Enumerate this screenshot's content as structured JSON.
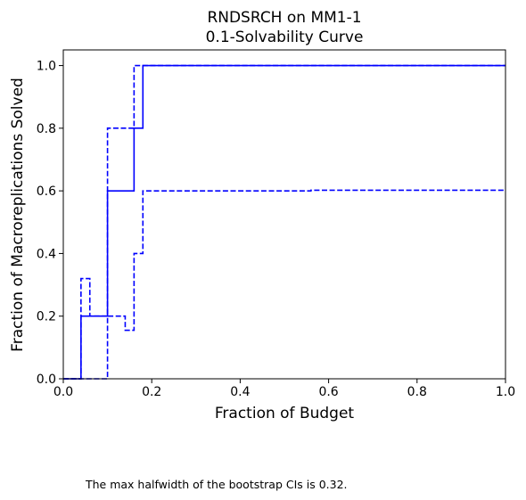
{
  "chart_data": {
    "type": "line",
    "title": "RNDSRCH on MM1-1",
    "subtitle": "0.1-Solvability Curve",
    "xlabel": "Fraction of Budget",
    "ylabel": "Fraction of Macroreplications Solved",
    "xlim": [
      0.0,
      1.0
    ],
    "ylim": [
      0.0,
      1.05
    ],
    "xticks": [
      "0.0",
      "0.2",
      "0.4",
      "0.6",
      "0.8",
      "1.0"
    ],
    "yticks": [
      "0.0",
      "0.2",
      "0.4",
      "0.6",
      "0.8",
      "1.0"
    ],
    "grid": false,
    "legend": "none",
    "color": "#0000ff",
    "series": [
      {
        "role": "estimate",
        "style": "solid",
        "x": [
          0.0,
          0.04,
          0.04,
          0.1,
          0.1,
          0.16,
          0.16,
          0.18,
          0.18,
          1.0
        ],
        "y": [
          0.0,
          0.0,
          0.2,
          0.2,
          0.6,
          0.6,
          0.8,
          0.8,
          1.0,
          1.0
        ]
      },
      {
        "role": "ci-upper",
        "style": "dashed",
        "x": [
          0.0,
          0.04,
          0.04,
          0.06,
          0.06,
          0.1,
          0.1,
          0.16,
          0.16,
          1.0
        ],
        "y": [
          0.0,
          0.0,
          0.32,
          0.32,
          0.2,
          0.2,
          0.8,
          0.8,
          1.0,
          1.0
        ]
      },
      {
        "role": "ci-lower",
        "style": "dashed",
        "x": [
          0.0,
          0.1,
          0.1,
          0.14,
          0.14,
          0.16,
          0.16,
          0.18,
          0.18,
          0.56,
          0.56,
          1.0
        ],
        "y": [
          0.0,
          0.0,
          0.2,
          0.2,
          0.155,
          0.155,
          0.4,
          0.4,
          0.6,
          0.6,
          0.602,
          0.602
        ]
      }
    ]
  },
  "footnote": "The max halfwidth of the bootstrap CIs is 0.32."
}
